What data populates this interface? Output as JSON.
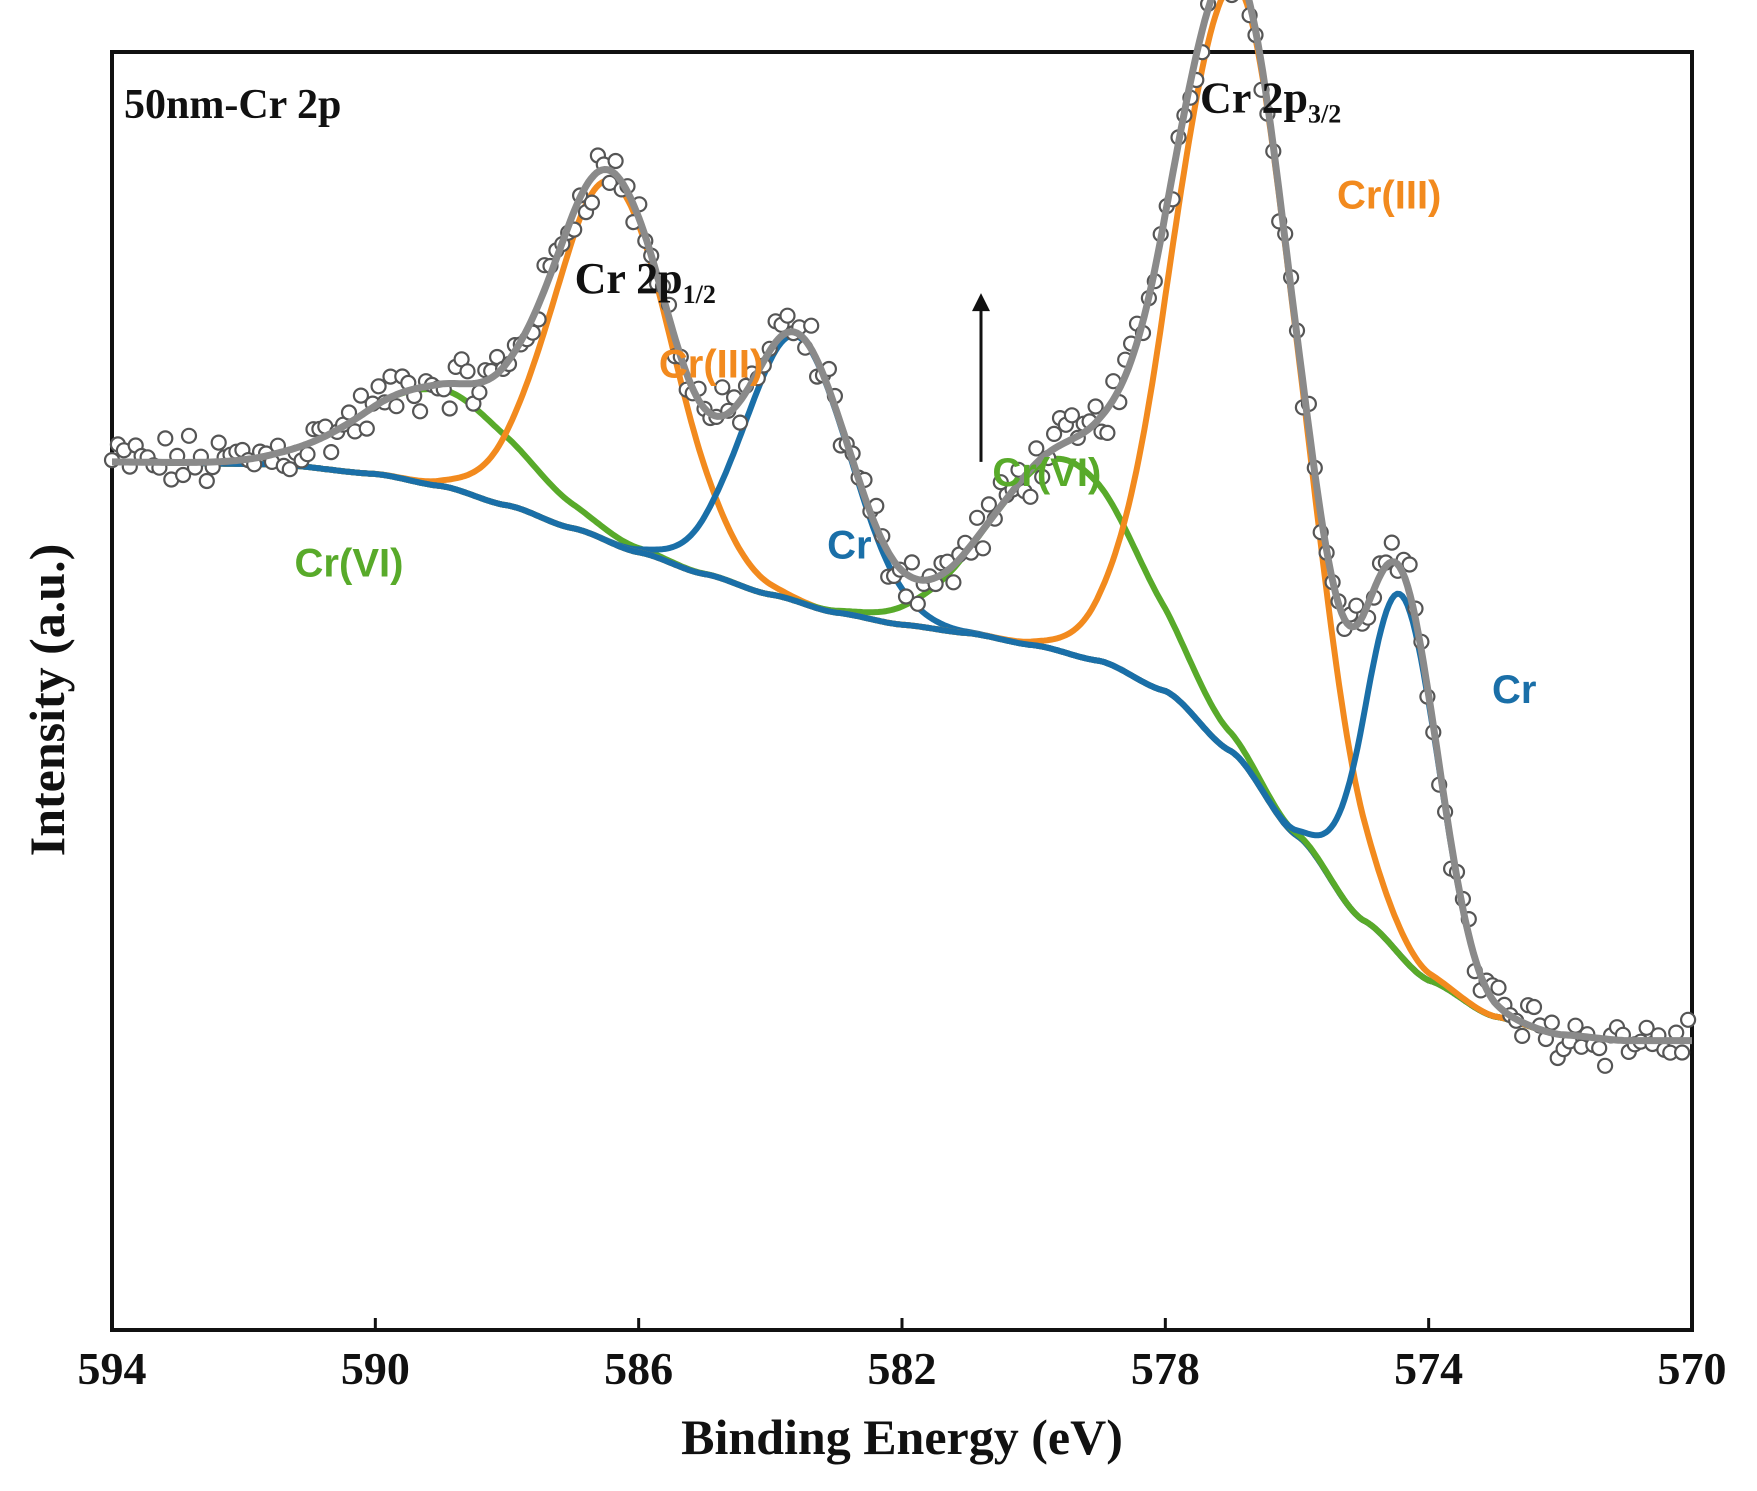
{
  "chart_data": {
    "type": "line",
    "title": "50nm-Cr 2p",
    "xlabel": "Binding Energy (eV)",
    "ylabel": "Intensity (a.u.)",
    "xlim": [
      594,
      570
    ],
    "ylim": [
      0,
      1.06
    ],
    "x_reversed": true,
    "grid": false,
    "y_ticks_shown": false,
    "x_ticks": [
      594,
      590,
      586,
      582,
      578,
      574,
      570
    ],
    "x_tick_labels": [
      "594",
      "590",
      "586",
      "582",
      "578",
      "574",
      "570"
    ],
    "colors": {
      "data": "#555555",
      "envelope": "#8a8a8a",
      "background": "#9999ee",
      "cr_vi": "#58aa2a",
      "cr_iii": "#f28a1e",
      "cr_metal": "#1a6fa8",
      "text": "#111111"
    },
    "background_shirley": {
      "x": [
        594,
        591.5,
        590,
        589,
        588,
        587,
        586,
        585,
        584,
        583,
        582,
        581,
        580,
        579,
        578,
        577,
        576,
        575,
        574,
        573,
        572,
        571,
        570
      ],
      "y": [
        0.72,
        0.718,
        0.71,
        0.7,
        0.684,
        0.665,
        0.645,
        0.627,
        0.61,
        0.595,
        0.585,
        0.578,
        0.568,
        0.555,
        0.53,
        0.48,
        0.41,
        0.34,
        0.29,
        0.26,
        0.245,
        0.24,
        0.24
      ]
    },
    "series": [
      {
        "name": "Cr(VI)",
        "role": "2p1/2",
        "color": "#58aa2a",
        "center": 589.0,
        "sigma": 1.2,
        "height": 0.08
      },
      {
        "name": "Cr(III)",
        "role": "2p1/2",
        "color": "#f28a1e",
        "center": 586.4,
        "sigma": 0.9,
        "height": 0.3
      },
      {
        "name": "Cr",
        "role": "2p1/2",
        "color": "#1a6fa8",
        "center": 583.6,
        "sigma": 0.8,
        "height": 0.22
      },
      {
        "name": "Cr(VI)",
        "role": "2p3/2",
        "color": "#58aa2a",
        "center": 579.5,
        "sigma": 1.15,
        "height": 0.16
      },
      {
        "name": "Cr(III)",
        "role": "2p3/2",
        "color": "#f28a1e",
        "center": 576.9,
        "sigma": 0.95,
        "height": 0.64
      },
      {
        "name": "Cr",
        "role": "2p3/2",
        "color": "#1a6fa8",
        "center": 574.4,
        "sigma": 0.55,
        "height": 0.3
      }
    ],
    "annotations": [
      {
        "text": "Cr 2p",
        "sub": "1/2",
        "x": 585.9,
        "y": 0.86,
        "color": "#111111",
        "kind": "peak"
      },
      {
        "text": "Cr 2p",
        "sub": "3/2",
        "x": 576.4,
        "y": 1.01,
        "color": "#111111",
        "kind": "peak"
      },
      {
        "text": "Cr(III)",
        "x": 584.9,
        "y": 0.79,
        "color": "#f28a1e",
        "kind": "component"
      },
      {
        "text": "Cr(III)",
        "x": 574.6,
        "y": 0.93,
        "color": "#f28a1e",
        "kind": "component"
      },
      {
        "text": "Cr(VI)",
        "x": 590.4,
        "y": 0.625,
        "color": "#58aa2a",
        "kind": "component"
      },
      {
        "text": "Cr(VI)",
        "x": 579.8,
        "y": 0.7,
        "color": "#58aa2a",
        "kind": "component"
      },
      {
        "text": "Cr",
        "x": 582.8,
        "y": 0.64,
        "color": "#1a6fa8",
        "kind": "component"
      },
      {
        "text": "Cr",
        "x": 572.7,
        "y": 0.52,
        "color": "#1a6fa8",
        "kind": "component"
      }
    ],
    "arrow": {
      "x": 580.8,
      "y_from": 0.72,
      "y_to": 0.86
    }
  }
}
